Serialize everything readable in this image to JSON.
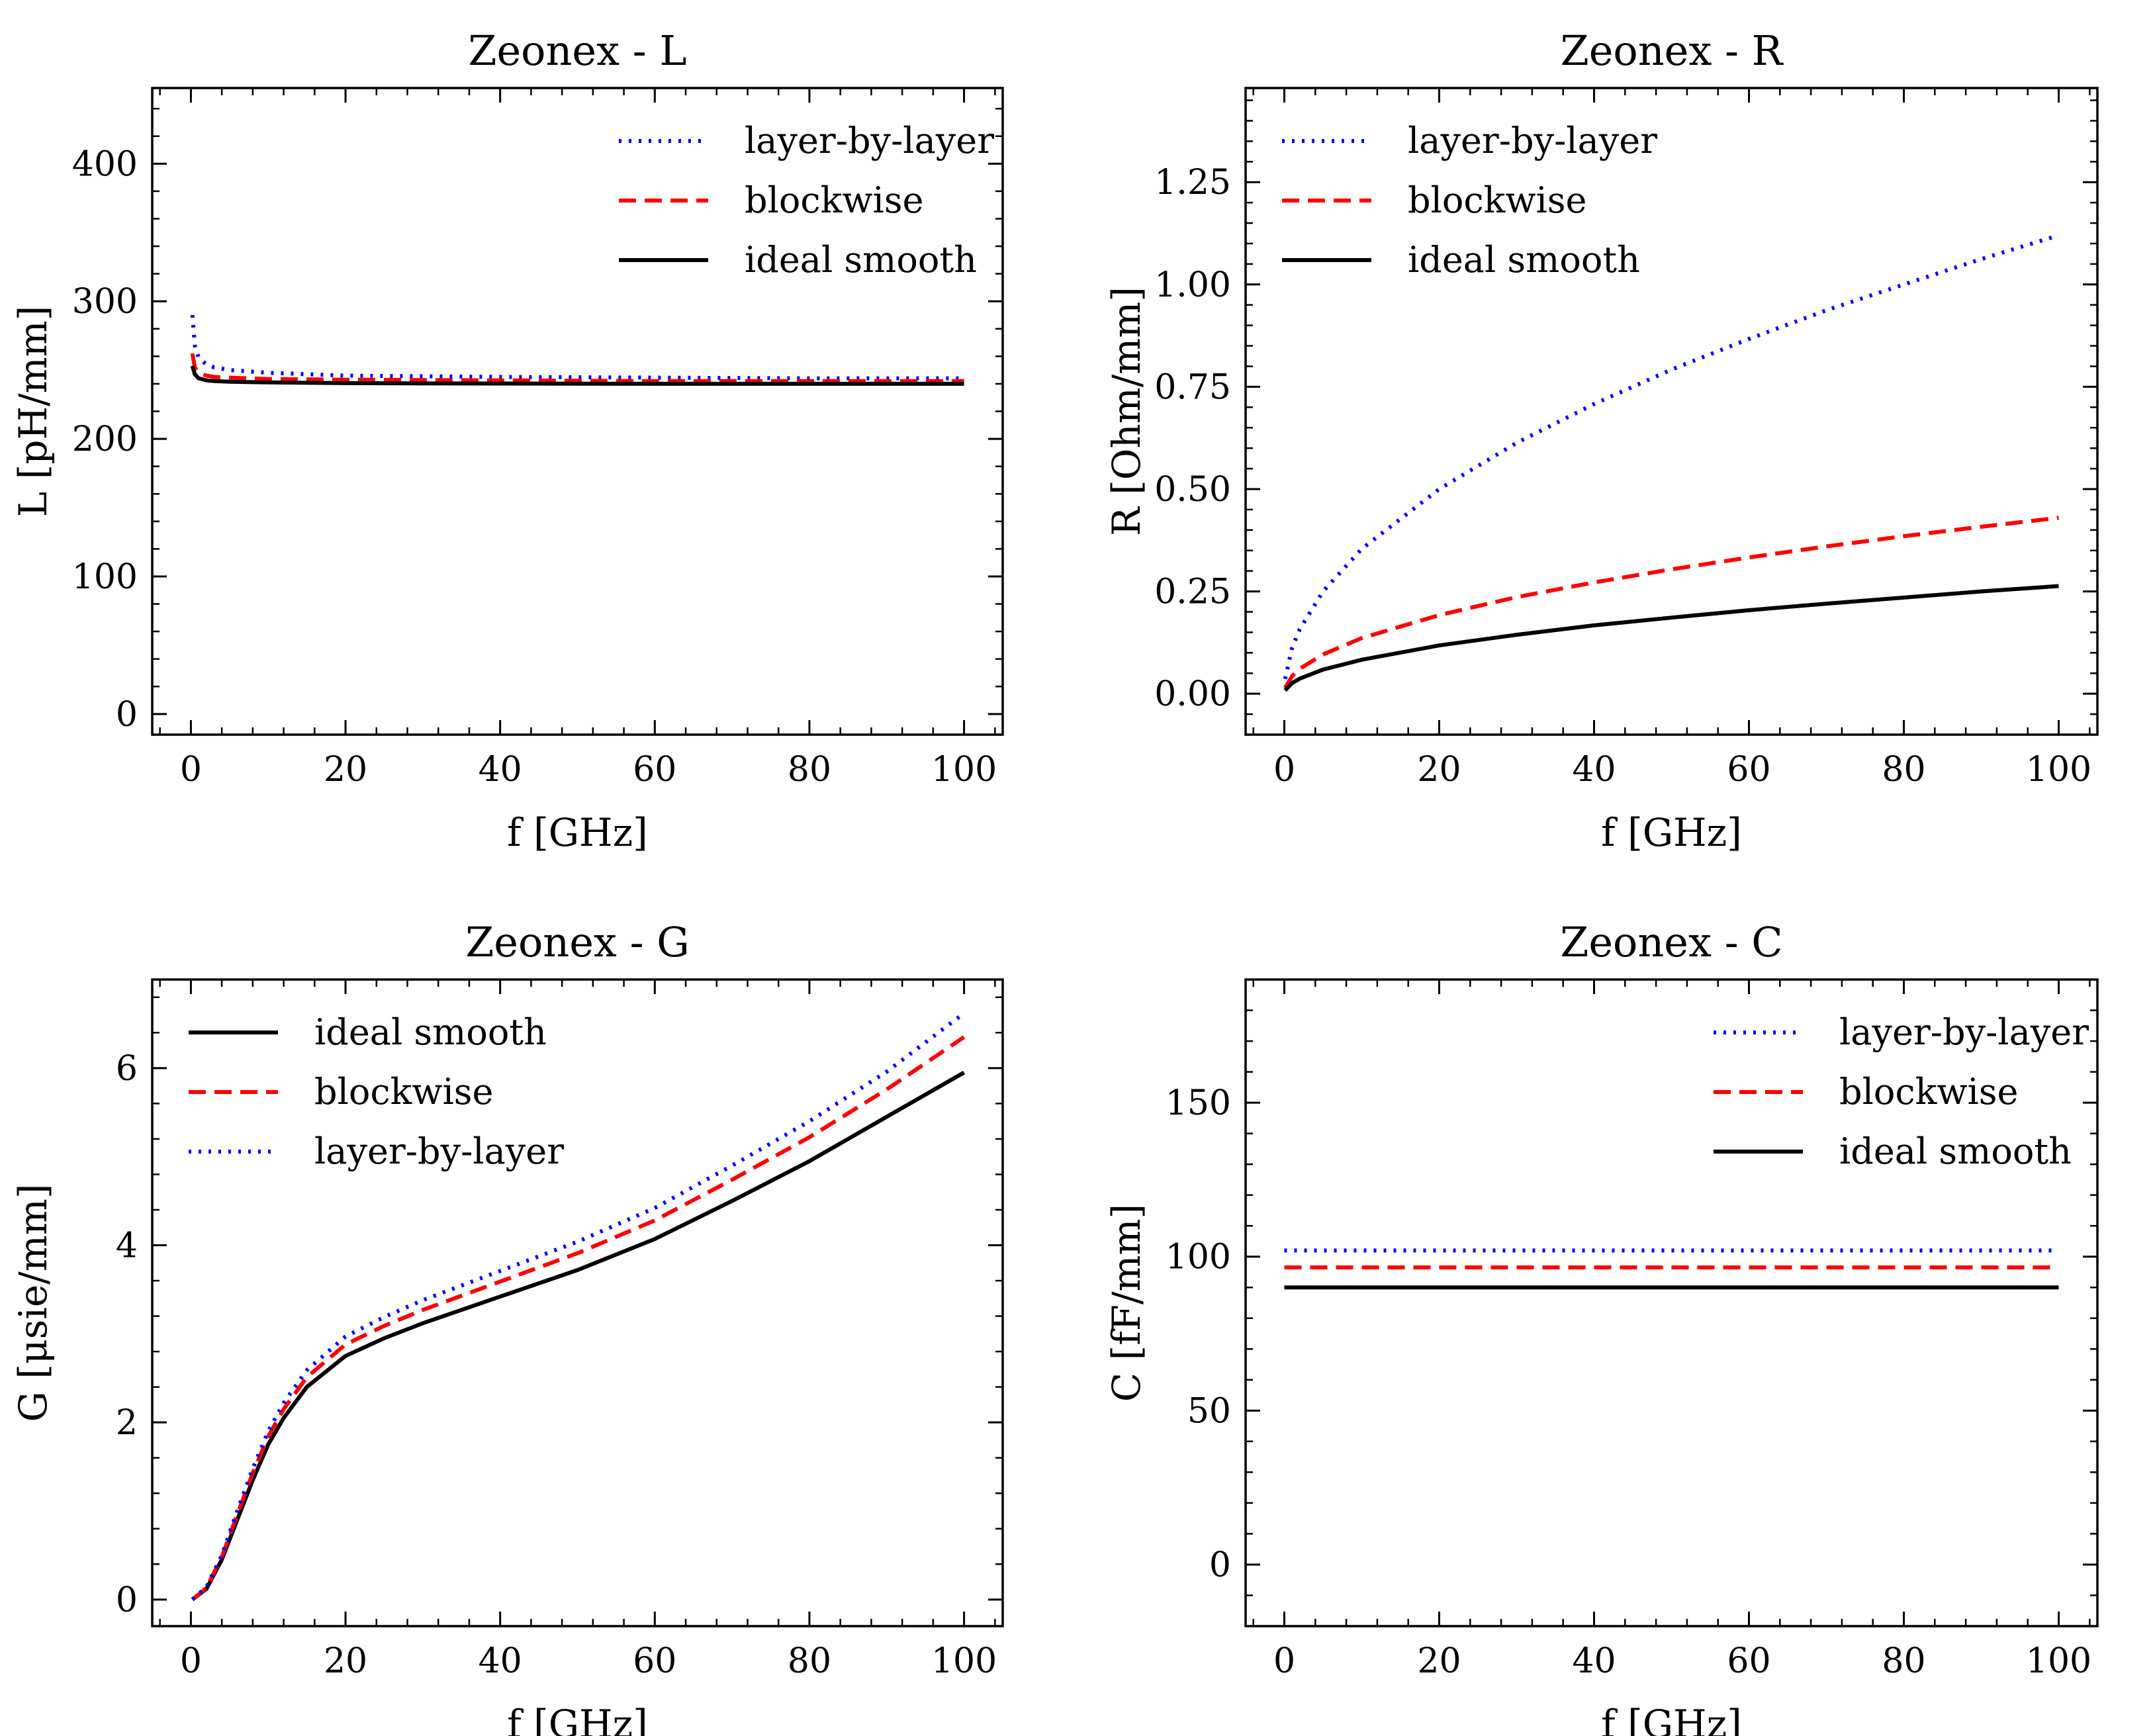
{
  "figure": {
    "colors": {
      "layer_by_layer": "#0000ff",
      "blockwise": "#ff0000",
      "ideal_smooth": "#000000"
    }
  },
  "chart_data": [
    {
      "id": "L",
      "type": "line",
      "title": "Zeonex - L",
      "xlabel": "f [GHz]",
      "ylabel": "L [pH/mm]",
      "xlim": [
        -5,
        105
      ],
      "ylim": [
        -15,
        455
      ],
      "xticks": [
        0,
        20,
        40,
        60,
        80,
        100
      ],
      "yticks": [
        0,
        100,
        200,
        300,
        400
      ],
      "xtick_labels": [
        "0",
        "20",
        "40",
        "60",
        "80",
        "100"
      ],
      "ytick_labels": [
        "0",
        "100",
        "200",
        "300",
        "400"
      ],
      "legend_position": "top-right",
      "legend": [
        "layer-by-layer",
        "blockwise",
        "ideal smooth"
      ],
      "series": [
        {
          "name": "layer-by-layer",
          "style": "dotted",
          "x": [
            0.2,
            0.5,
            1,
            2,
            3,
            5,
            10,
            20,
            40,
            60,
            80,
            100
          ],
          "y": [
            290,
            268,
            259,
            254,
            252,
            250,
            248,
            246,
            245,
            244.5,
            244,
            244
          ]
        },
        {
          "name": "blockwise",
          "style": "dashed",
          "x": [
            0.2,
            0.5,
            1,
            2,
            3,
            5,
            10,
            20,
            40,
            60,
            80,
            100
          ],
          "y": [
            262,
            252,
            248,
            246,
            245,
            244.5,
            243.5,
            243,
            242.5,
            242,
            242,
            242
          ]
        },
        {
          "name": "ideal smooth",
          "style": "solid",
          "x": [
            0.2,
            0.5,
            1,
            2,
            3,
            5,
            10,
            20,
            40,
            60,
            80,
            100
          ],
          "y": [
            253,
            247,
            244,
            242.5,
            242,
            241.5,
            241,
            240.5,
            240.2,
            240,
            240,
            240
          ]
        }
      ]
    },
    {
      "id": "R",
      "type": "line",
      "title": "Zeonex - R",
      "xlabel": "f [GHz]",
      "ylabel": "R [Ohm/mm]",
      "xlim": [
        -5,
        105
      ],
      "ylim": [
        -0.1,
        1.48
      ],
      "xticks": [
        0,
        20,
        40,
        60,
        80,
        100
      ],
      "yticks": [
        0.0,
        0.25,
        0.5,
        0.75,
        1.0,
        1.25
      ],
      "xtick_labels": [
        "0",
        "20",
        "40",
        "60",
        "80",
        "100"
      ],
      "ytick_labels": [
        "0.00",
        "0.25",
        "0.50",
        "0.75",
        "1.00",
        "1.25"
      ],
      "legend_position": "top-left",
      "legend": [
        "layer-by-layer",
        "blockwise",
        "ideal smooth"
      ],
      "series": [
        {
          "name": "layer-by-layer",
          "style": "dotted",
          "x": [
            0.1,
            1,
            2,
            5,
            10,
            20,
            30,
            40,
            50,
            60,
            70,
            80,
            90,
            100
          ],
          "y": [
            0.036,
            0.112,
            0.158,
            0.25,
            0.354,
            0.5,
            0.613,
            0.708,
            0.792,
            0.867,
            0.937,
            1.0,
            1.062,
            1.12
          ]
        },
        {
          "name": "blockwise",
          "style": "dashed",
          "x": [
            0.1,
            1,
            2,
            5,
            10,
            20,
            30,
            40,
            50,
            60,
            70,
            80,
            90,
            100
          ],
          "y": [
            0.014,
            0.043,
            0.061,
            0.096,
            0.136,
            0.192,
            0.236,
            0.272,
            0.304,
            0.333,
            0.36,
            0.385,
            0.408,
            0.43
          ]
        },
        {
          "name": "ideal smooth",
          "style": "solid",
          "x": [
            0.1,
            1,
            2,
            5,
            10,
            20,
            30,
            40,
            50,
            60,
            70,
            80,
            90,
            100
          ],
          "y": [
            0.008,
            0.026,
            0.037,
            0.059,
            0.083,
            0.118,
            0.144,
            0.167,
            0.186,
            0.204,
            0.22,
            0.235,
            0.25,
            0.263
          ]
        }
      ]
    },
    {
      "id": "G",
      "type": "line",
      "title": "Zeonex - G",
      "xlabel": "f [GHz]",
      "ylabel": "G [μsie/mm]",
      "xlim": [
        -5,
        105
      ],
      "ylim": [
        -0.3,
        7.0
      ],
      "xticks": [
        0,
        20,
        40,
        60,
        80,
        100
      ],
      "yticks": [
        0,
        2,
        4,
        6
      ],
      "xtick_labels": [
        "0",
        "20",
        "40",
        "60",
        "80",
        "100"
      ],
      "ytick_labels": [
        "0",
        "2",
        "4",
        "6"
      ],
      "legend_position": "top-left",
      "legend": [
        "ideal smooth",
        "blockwise",
        "layer-by-layer"
      ],
      "series": [
        {
          "name": "ideal smooth",
          "style": "solid",
          "x": [
            0.2,
            2,
            4,
            6,
            8,
            10,
            12,
            15,
            20,
            25,
            30,
            40,
            50,
            60,
            70,
            80,
            90,
            100
          ],
          "y": [
            0.0,
            0.12,
            0.45,
            0.9,
            1.35,
            1.75,
            2.05,
            2.4,
            2.75,
            2.95,
            3.12,
            3.42,
            3.72,
            4.07,
            4.5,
            4.95,
            5.45,
            5.95
          ]
        },
        {
          "name": "blockwise",
          "style": "dashed",
          "x": [
            0.2,
            2,
            4,
            6,
            8,
            10,
            12,
            15,
            20,
            25,
            30,
            40,
            50,
            60,
            70,
            80,
            90,
            100
          ],
          "y": [
            0.0,
            0.13,
            0.48,
            0.96,
            1.43,
            1.84,
            2.15,
            2.51,
            2.88,
            3.09,
            3.27,
            3.59,
            3.91,
            4.28,
            4.74,
            5.22,
            5.76,
            6.35
          ]
        },
        {
          "name": "layer-by-layer",
          "style": "dotted",
          "x": [
            0.2,
            2,
            4,
            6,
            8,
            10,
            12,
            15,
            20,
            25,
            30,
            40,
            50,
            60,
            70,
            80,
            90,
            100
          ],
          "y": [
            0.0,
            0.14,
            0.5,
            1.0,
            1.48,
            1.9,
            2.22,
            2.59,
            2.97,
            3.19,
            3.38,
            3.71,
            4.04,
            4.42,
            4.9,
            5.4,
            5.96,
            6.62
          ]
        }
      ]
    },
    {
      "id": "C",
      "type": "line",
      "title": "Zeonex - C",
      "xlabel": "f [GHz]",
      "ylabel": "C [fF/mm]",
      "xlim": [
        -5,
        105
      ],
      "ylim": [
        -20,
        190
      ],
      "xticks": [
        0,
        20,
        40,
        60,
        80,
        100
      ],
      "yticks": [
        0,
        50,
        100,
        150
      ],
      "xtick_labels": [
        "0",
        "20",
        "40",
        "60",
        "80",
        "100"
      ],
      "ytick_labels": [
        "0",
        "50",
        "100",
        "150"
      ],
      "legend_position": "top-right",
      "legend": [
        "layer-by-layer",
        "blockwise",
        "ideal smooth"
      ],
      "series": [
        {
          "name": "layer-by-layer",
          "style": "dotted",
          "x": [
            0,
            100
          ],
          "y": [
            102,
            102
          ]
        },
        {
          "name": "blockwise",
          "style": "dashed",
          "x": [
            0,
            100
          ],
          "y": [
            96.5,
            96.5
          ]
        },
        {
          "name": "ideal smooth",
          "style": "solid",
          "x": [
            0,
            100
          ],
          "y": [
            90,
            90
          ]
        }
      ]
    }
  ]
}
